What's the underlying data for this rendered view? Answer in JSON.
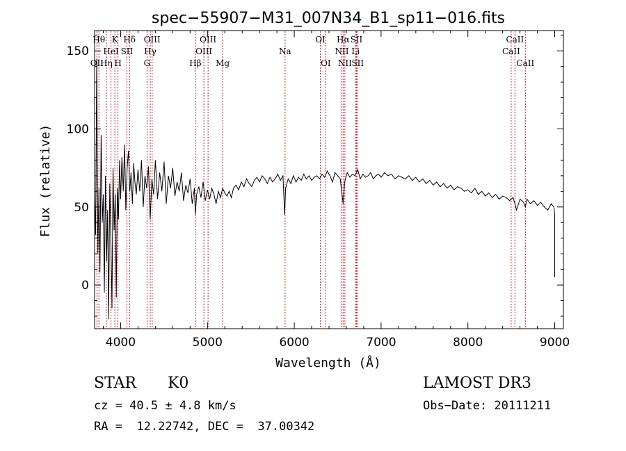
{
  "chart_data": {
    "type": "line",
    "title": "spec−55907−M31_007N34_B1_sp11−016.fits",
    "xlabel": "Wavelength (Å)",
    "ylabel": "Flux (relative)",
    "xlim": [
      3700,
      9100
    ],
    "ylim": [
      -28,
      163
    ],
    "xticks": [
      4000,
      5000,
      6000,
      7000,
      8000,
      9000
    ],
    "xtick_labels": [
      "4000",
      "5000",
      "6000",
      "7000",
      "8000",
      "9000"
    ],
    "yticks": [
      0,
      50,
      100,
      150
    ],
    "ytick_labels": [
      "0",
      "50",
      "100",
      "150"
    ],
    "grid": false,
    "series": [
      {
        "name": "flux",
        "x": [
          3700,
          3712,
          3725,
          3738,
          3750,
          3762,
          3775,
          3788,
          3800,
          3812,
          3825,
          3838,
          3850,
          3862,
          3875,
          3888,
          3900,
          3912,
          3925,
          3938,
          3950,
          3962,
          3975,
          3988,
          4000,
          4015,
          4030,
          4045,
          4060,
          4075,
          4090,
          4105,
          4120,
          4135,
          4150,
          4165,
          4180,
          4200,
          4220,
          4240,
          4260,
          4280,
          4300,
          4320,
          4340,
          4360,
          4380,
          4400,
          4425,
          4450,
          4475,
          4500,
          4525,
          4550,
          4575,
          4600,
          4625,
          4650,
          4675,
          4700,
          4725,
          4750,
          4775,
          4800,
          4825,
          4850,
          4861,
          4875,
          4900,
          4925,
          4950,
          4975,
          5000,
          5025,
          5050,
          5075,
          5100,
          5125,
          5150,
          5175,
          5200,
          5225,
          5250,
          5275,
          5300,
          5330,
          5360,
          5390,
          5420,
          5450,
          5480,
          5510,
          5540,
          5570,
          5600,
          5630,
          5660,
          5690,
          5720,
          5750,
          5780,
          5810,
          5840,
          5870,
          5890,
          5900,
          5930,
          5960,
          5990,
          6020,
          6050,
          6080,
          6110,
          6140,
          6170,
          6200,
          6230,
          6260,
          6290,
          6320,
          6350,
          6380,
          6410,
          6440,
          6470,
          6500,
          6530,
          6563,
          6580,
          6610,
          6640,
          6670,
          6700,
          6730,
          6760,
          6790,
          6820,
          6850,
          6880,
          6910,
          6940,
          6970,
          7000,
          7040,
          7080,
          7120,
          7160,
          7200,
          7240,
          7280,
          7320,
          7360,
          7400,
          7440,
          7480,
          7520,
          7560,
          7600,
          7640,
          7680,
          7720,
          7760,
          7800,
          7840,
          7880,
          7920,
          7960,
          8000,
          8040,
          8080,
          8120,
          8160,
          8200,
          8240,
          8280,
          8320,
          8360,
          8400,
          8440,
          8480,
          8520,
          8542,
          8560,
          8600,
          8640,
          8662,
          8680,
          8720,
          8760,
          8800,
          8840,
          8880,
          8920,
          8960,
          8990,
          9000,
          9000
        ],
        "y": [
          57,
          32,
          145,
          20,
          62,
          8,
          96,
          40,
          58,
          -5,
          70,
          15,
          48,
          -22,
          65,
          28,
          -15,
          75,
          35,
          58,
          -8,
          62,
          42,
          80,
          55,
          82,
          60,
          90,
          48,
          75,
          86,
          60,
          72,
          52,
          78,
          66,
          58,
          74,
          60,
          80,
          50,
          70,
          62,
          76,
          42,
          68,
          58,
          80,
          55,
          72,
          60,
          79,
          52,
          70,
          62,
          75,
          57,
          66,
          60,
          72,
          54,
          64,
          59,
          68,
          52,
          62,
          45,
          58,
          63,
          56,
          66,
          54,
          61,
          55,
          62,
          58,
          52,
          60,
          56,
          62,
          59,
          57,
          60,
          56,
          62,
          64,
          61,
          66,
          63,
          68,
          65,
          63,
          67,
          69,
          66,
          70,
          68,
          65,
          69,
          66,
          68,
          71,
          67,
          70,
          45,
          62,
          68,
          65,
          70,
          66,
          69,
          67,
          71,
          68,
          70,
          67,
          69,
          70,
          68,
          71,
          69,
          73,
          70,
          66,
          72,
          70,
          68,
          52,
          66,
          72,
          69,
          71,
          70,
          74,
          68,
          71,
          69,
          70,
          72,
          68,
          70,
          71,
          69,
          72,
          70,
          71,
          68,
          70,
          69,
          68,
          70,
          67,
          69,
          66,
          68,
          65,
          67,
          64,
          66,
          63,
          65,
          62,
          64,
          61,
          63,
          62,
          60,
          61,
          59,
          62,
          58,
          60,
          57,
          59,
          56,
          58,
          55,
          57,
          56,
          54,
          56,
          52,
          48,
          55,
          53,
          50,
          55,
          52,
          54,
          51,
          53,
          50,
          48,
          52,
          50,
          45,
          5
        ]
      }
    ],
    "lines": [
      {
        "name": "O II",
        "label": "OII",
        "x": 3727,
        "row": 2
      },
      {
        "name": "H theta",
        "label": "Hθ",
        "x": 3750,
        "row": 0
      },
      {
        "name": "H eta",
        "label": "Hη",
        "x": 3835,
        "row": 2
      },
      {
        "name": "He I",
        "label": "HeI",
        "x": 3889,
        "row": 1
      },
      {
        "name": "K",
        "label": "K",
        "x": 3934,
        "row": 0
      },
      {
        "name": "H",
        "label": "H",
        "x": 3969,
        "row": 2
      },
      {
        "name": "S II 4072",
        "label": "SII",
        "x": 4072,
        "row": 1
      },
      {
        "name": "H delta",
        "label": "Hδ",
        "x": 4102,
        "row": 0
      },
      {
        "name": "G",
        "label": "G",
        "x": 4304,
        "row": 2
      },
      {
        "name": "H gamma",
        "label": "Hγ",
        "x": 4341,
        "row": 1
      },
      {
        "name": "O III 4363",
        "label": "OIII",
        "x": 4363,
        "row": 0
      },
      {
        "name": "H beta",
        "label": "Hβ",
        "x": 4861,
        "row": 2
      },
      {
        "name": "O III 4959",
        "label": "OIII",
        "x": 4959,
        "row": 1
      },
      {
        "name": "O III 5007",
        "label": "OIII",
        "x": 5007,
        "row": 0
      },
      {
        "name": "Mg",
        "label": "Mg",
        "x": 5175,
        "row": 2
      },
      {
        "name": "Na",
        "label": "Na",
        "x": 5894,
        "row": 1
      },
      {
        "name": "O I 6300",
        "label": "OI",
        "x": 6300,
        "row": 0
      },
      {
        "name": "O I 6363",
        "label": "OI",
        "x": 6363,
        "row": 2
      },
      {
        "name": "N II 6548",
        "label": "NII",
        "x": 6548,
        "row": 1
      },
      {
        "name": "H alpha",
        "label": "Hα",
        "x": 6563,
        "row": 0
      },
      {
        "name": "N II 6583",
        "label": "NII",
        "x": 6583,
        "row": 2
      },
      {
        "name": "Li",
        "label": "Li",
        "x": 6707,
        "row": 1
      },
      {
        "name": "S II 6716",
        "label": "SII",
        "x": 6716,
        "row": 0
      },
      {
        "name": "S II 6731",
        "label": "SII",
        "x": 6731,
        "row": 2
      },
      {
        "name": "Ca II 8498",
        "label": "CaII",
        "x": 8498,
        "row": 1
      },
      {
        "name": "Ca II 8542",
        "label": "CaII",
        "x": 8542,
        "row": 0
      },
      {
        "name": "Ca II 8662",
        "label": "CaII",
        "x": 8662,
        "row": 2
      }
    ],
    "colors": {
      "line": "#000000",
      "marker": "#cc2222",
      "text": "#000000"
    }
  },
  "info": {
    "class_label": "STAR",
    "subclass": "K0",
    "survey": "LAMOST DR3",
    "redshift": "cz = 40.5 ± 4.8 km/s",
    "obs_date": "Obs−Date: 20111211",
    "coords": "RA =  12.22742, DEC =  37.00342"
  }
}
